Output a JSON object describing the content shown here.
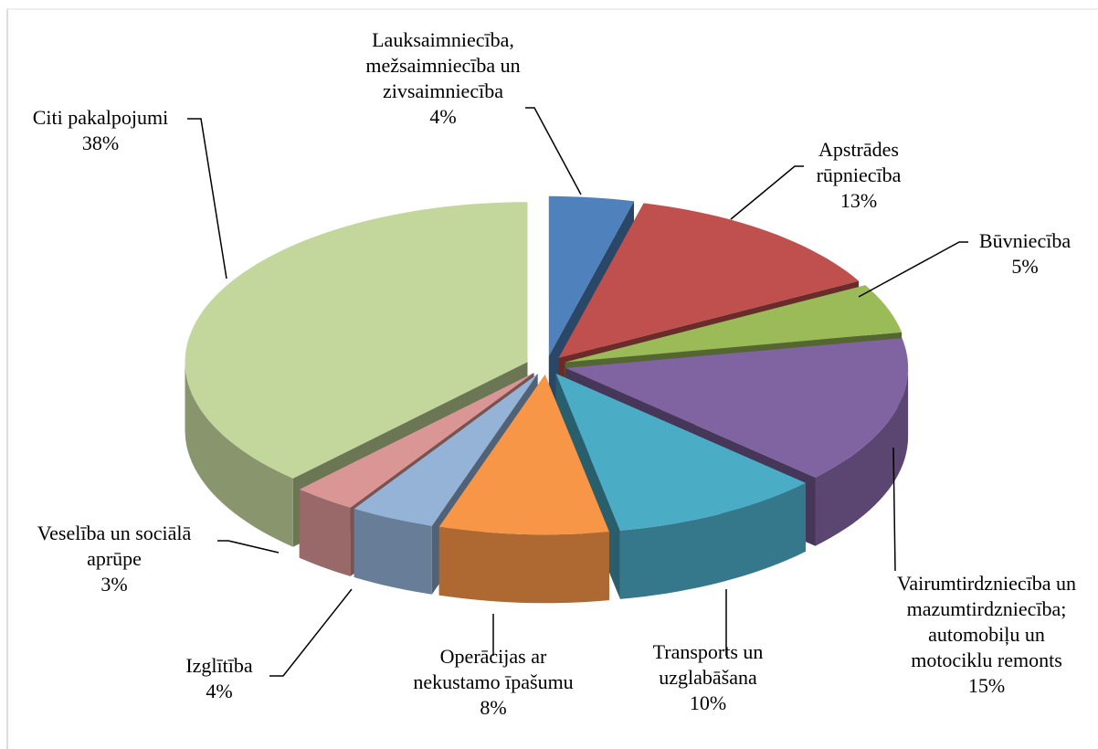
{
  "chart_data": {
    "type": "pie",
    "categories": [
      "Lauksaimniecība, mežsaimniecība un zivsaimniecība",
      "Apstrādes rūpniecība",
      "Būvniecība",
      "Vairumtirdzniecība un mazumtirdzniecība; automobiļu un motociklu remonts",
      "Transports un uzglabāšana",
      "Operācijas ar nekustamo īpašumu",
      "Izglītība",
      "Veselība un sociālā aprūpe",
      "Citi pakalpojumi"
    ],
    "values": [
      4,
      13,
      5,
      15,
      10,
      8,
      4,
      3,
      38
    ],
    "value_labels": [
      "4%",
      "13%",
      "5%",
      "15%",
      "10%",
      "8%",
      "4%",
      "3%",
      "38%"
    ],
    "colors": [
      "#4f81bd",
      "#c0504d",
      "#9bbb59",
      "#8064a2",
      "#4bacc6",
      "#f79646",
      "#95b3d7",
      "#d99694",
      "#c3d69b"
    ]
  }
}
